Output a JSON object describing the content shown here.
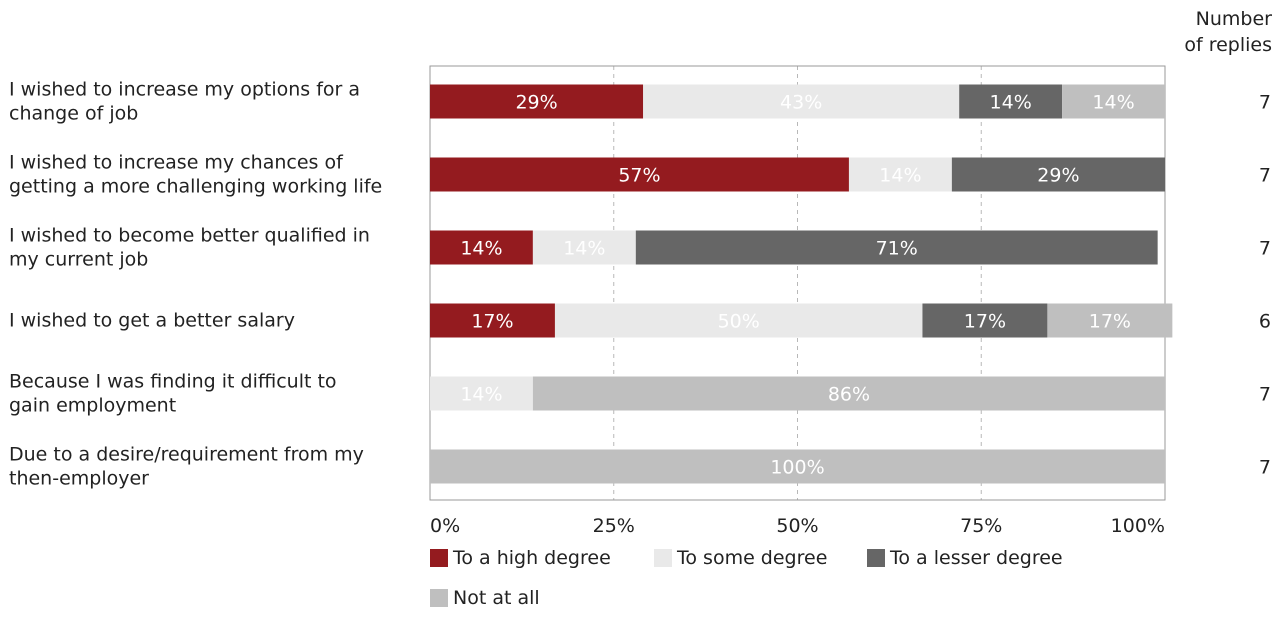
{
  "chart_data": {
    "type": "bar",
    "stacked": true,
    "orientation": "horizontal",
    "percent_axis": true,
    "categories": [
      [
        "I wished to increase my options for a",
        "change of job"
      ],
      [
        "I wished to increase my chances of",
        "getting a more challenging working life"
      ],
      [
        "I wished to become better qualified in",
        "my current job"
      ],
      [
        "I wished to get a better salary"
      ],
      [
        "Because I was finding it difficult to",
        "gain employment"
      ],
      [
        "Due to a desire/requirement from my",
        "then-employer"
      ]
    ],
    "series": [
      {
        "name": "To a high degree",
        "color": "#941b1f",
        "label_color": "#ffffff",
        "values": [
          29,
          57,
          14,
          17,
          0,
          0
        ]
      },
      {
        "name": "To some degree",
        "color": "#e9e9e9",
        "label_color": "#ffffff",
        "values": [
          43,
          14,
          14,
          50,
          14,
          0
        ]
      },
      {
        "name": "To a lesser degree",
        "color": "#666666",
        "label_color": "#ffffff",
        "values": [
          14,
          29,
          71,
          17,
          0,
          0
        ]
      },
      {
        "name": "Not at all",
        "color": "#bfbfbf",
        "label_color": "#ffffff",
        "values": [
          14,
          0,
          0,
          17,
          86,
          100
        ]
      }
    ],
    "replies_header": [
      "Number",
      "of replies"
    ],
    "replies": [
      7,
      7,
      7,
      6,
      7,
      7
    ],
    "x_ticks": [
      "0%",
      "25%",
      "50%",
      "75%",
      "100%"
    ],
    "xlim": [
      0,
      100
    ],
    "grid": "vertical dashed",
    "legend_position": "bottom"
  }
}
